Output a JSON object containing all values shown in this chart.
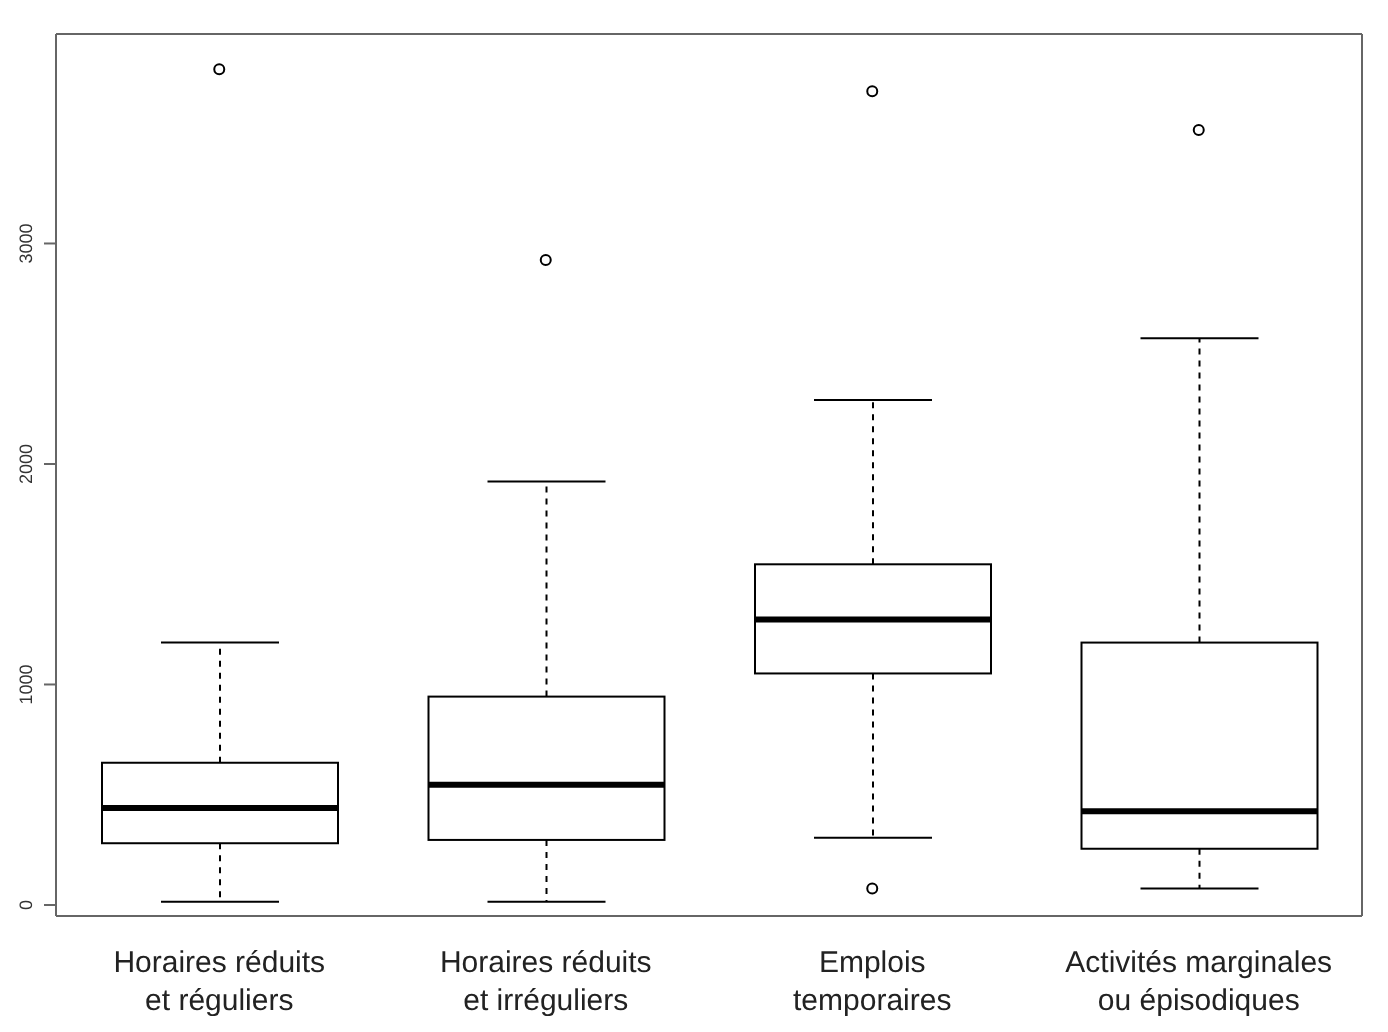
{
  "chart_data": {
    "type": "box",
    "categories": [
      "Horaires réduits\net réguliers",
      "Horaires réduits\net irréguliers",
      "Emplois\ntemporaires",
      "Activités marginales\nou épisodiques"
    ],
    "boxes": [
      {
        "low": 15,
        "q1": 280,
        "median": 440,
        "q3": 645,
        "high": 1190,
        "outliers": [
          3790
        ]
      },
      {
        "low": 15,
        "q1": 295,
        "median": 545,
        "q3": 945,
        "high": 1920,
        "outliers": [
          2925
        ]
      },
      {
        "low": 305,
        "q1": 1050,
        "median": 1295,
        "q3": 1545,
        "high": 2290,
        "outliers": [
          3690,
          75
        ]
      },
      {
        "low": 75,
        "q1": 255,
        "median": 425,
        "q3": 1190,
        "high": 2570,
        "outliers": [
          3515
        ]
      }
    ],
    "color": "#000000",
    "ylim": [
      -50,
      3950
    ],
    "yticks": [
      0,
      1000,
      2000,
      3000
    ]
  }
}
